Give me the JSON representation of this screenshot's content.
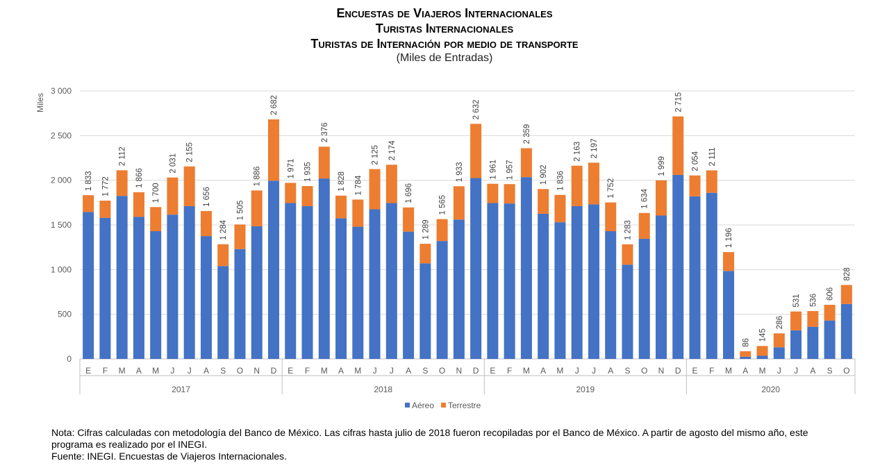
{
  "titles": {
    "line1": "Encuestas de Viajeros Internacionales",
    "line2": "Turistas Internacionales",
    "line3": "Turistas de Internación por medio de transporte",
    "subtitle": "(Miles de Entradas)"
  },
  "notes": {
    "nota": "Nota: Cifras calculadas con metodología del Banco de México. Las cifras hasta julio de 2018 fueron recopiladas por el Banco de México. A partir de agosto del mismo año, este programa es realizado por el INEGI.",
    "fuente": "Fuente: INEGI. Encuestas de Viajeros Internacionales."
  },
  "chart_data": {
    "type": "bar",
    "stacked": true,
    "ylabel": "Miles",
    "ylim": [
      0,
      3000
    ],
    "yticks": [
      0,
      500,
      1000,
      1500,
      2000,
      2500,
      3000
    ],
    "ytick_labels": [
      "0",
      "500",
      "1 000",
      "1 500",
      "2 000",
      "2 500",
      "3 000"
    ],
    "grid": true,
    "legend_position": "bottom",
    "months": [
      "E",
      "F",
      "M",
      "A",
      "M",
      "J",
      "J",
      "A",
      "S",
      "O",
      "N",
      "D",
      "E",
      "F",
      "M",
      "A",
      "M",
      "J",
      "J",
      "A",
      "S",
      "O",
      "N",
      "D",
      "E",
      "F",
      "M",
      "A",
      "M",
      "J",
      "J",
      "A",
      "S",
      "O",
      "N",
      "D",
      "E",
      "F",
      "M",
      "A",
      "M",
      "J",
      "J",
      "A",
      "S",
      "O"
    ],
    "years": [
      {
        "label": "2017",
        "count": 12
      },
      {
        "label": "2018",
        "count": 12
      },
      {
        "label": "2019",
        "count": 12
      },
      {
        "label": "2020",
        "count": 10
      }
    ],
    "series": [
      {
        "name": "Aéreo",
        "color": "#4472C4",
        "values": [
          1645,
          1580,
          1825,
          1590,
          1430,
          1615,
          1710,
          1375,
          1040,
          1230,
          1485,
          1995,
          1745,
          1710,
          2020,
          1575,
          1480,
          1675,
          1745,
          1425,
          1070,
          1320,
          1560,
          2025,
          1745,
          1740,
          2035,
          1625,
          1530,
          1710,
          1730,
          1430,
          1055,
          1345,
          1605,
          2060,
          1820,
          1860,
          985,
          25,
          35,
          130,
          320,
          360,
          430,
          615
        ]
      },
      {
        "name": "Terrestre",
        "color": "#ED7D31",
        "values": [
          188,
          192,
          287,
          276,
          270,
          416,
          445,
          281,
          244,
          275,
          401,
          687,
          226,
          225,
          356,
          253,
          304,
          450,
          429,
          271,
          219,
          245,
          373,
          607,
          216,
          217,
          324,
          277,
          306,
          453,
          467,
          322,
          228,
          289,
          394,
          655,
          234,
          251,
          211,
          61,
          110,
          156,
          211,
          176,
          176,
          213
        ]
      }
    ],
    "totals": [
      1833,
      1772,
      2112,
      1866,
      1700,
      2031,
      2155,
      1656,
      1284,
      1505,
      1886,
      2682,
      1971,
      1935,
      2376,
      1828,
      1784,
      2125,
      2174,
      1696,
      1289,
      1565,
      1933,
      2632,
      1961,
      1957,
      2359,
      1902,
      1836,
      2163,
      2197,
      1752,
      1283,
      1634,
      1999,
      2715,
      2054,
      2111,
      1196,
      86,
      145,
      286,
      531,
      536,
      606,
      828
    ],
    "total_labels": [
      "1 833",
      "1 772",
      "2 112",
      "1 866",
      "1 700",
      "2 031",
      "2 155",
      "1 656",
      "1 284",
      "1 505",
      "1 886",
      "2 682",
      "1 971",
      "1 935",
      "2 376",
      "1 828",
      "1 784",
      "2 125",
      "2 174",
      "1 696",
      "1 289",
      "1 565",
      "1 933",
      "2 632",
      "1 961",
      "1 957",
      "2 359",
      "1 902",
      "1 836",
      "2 163",
      "2 197",
      "1 752",
      "1 283",
      "1 634",
      "1 999",
      "2 715",
      "2 054",
      "2 111",
      "1 196",
      "86",
      "145",
      "286",
      "531",
      "536",
      "606",
      "828"
    ]
  }
}
